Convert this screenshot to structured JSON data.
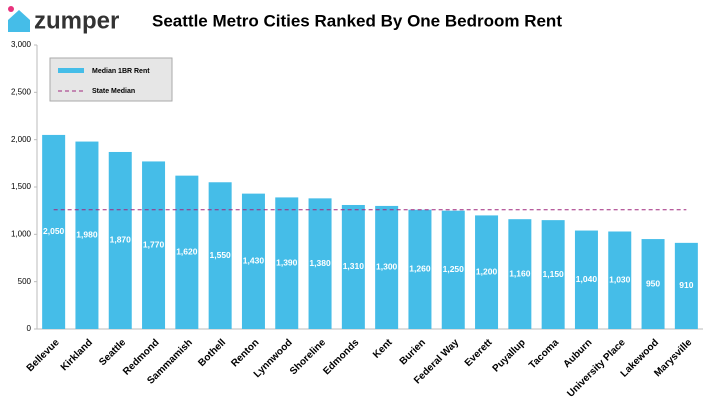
{
  "brand": "zumper",
  "chart_data": {
    "type": "bar",
    "title": "Seattle Metro Cities Ranked By One Bedroom Rent",
    "categories": [
      "Bellevue",
      "Kirkland",
      "Seattle",
      "Redmond",
      "Sammamish",
      "Bothell",
      "Renton",
      "Lynnwood",
      "Shoreline",
      "Edmonds",
      "Kent",
      "Burien",
      "Federal Way",
      "Everett",
      "Puyallup",
      "Tacoma",
      "Auburn",
      "University Place",
      "Lakewood",
      "Marysville"
    ],
    "series": [
      {
        "name": "Median 1BR Rent",
        "color": "#45bde8",
        "values": [
          2050,
          1980,
          1870,
          1770,
          1620,
          1550,
          1430,
          1390,
          1380,
          1310,
          1300,
          1260,
          1250,
          1200,
          1160,
          1150,
          1040,
          1030,
          950,
          910
        ],
        "value_labels": [
          "2,050",
          "1,980",
          "1,870",
          "1,770",
          "1,620",
          "1,550",
          "1,430",
          "1,390",
          "1,380",
          "1,310",
          "1,300",
          "1,260",
          "1,250",
          "1,200",
          "1,160",
          "1,150",
          "1,040",
          "1,030",
          "950",
          "910"
        ]
      }
    ],
    "reference_line": {
      "name": "State Median",
      "color": "#a0287f",
      "value": 1260
    },
    "ylim": [
      0,
      3000
    ],
    "yticks": [
      0,
      500,
      {
        "value": 1000,
        "label": "1,000"
      },
      {
        "value": 1500,
        "label": "1,500"
      },
      {
        "value": 2000,
        "label": "2,000"
      },
      {
        "value": 2500,
        "label": "2,500"
      },
      {
        "value": 3000,
        "label": "3,000"
      }
    ],
    "legend": "upper left"
  }
}
